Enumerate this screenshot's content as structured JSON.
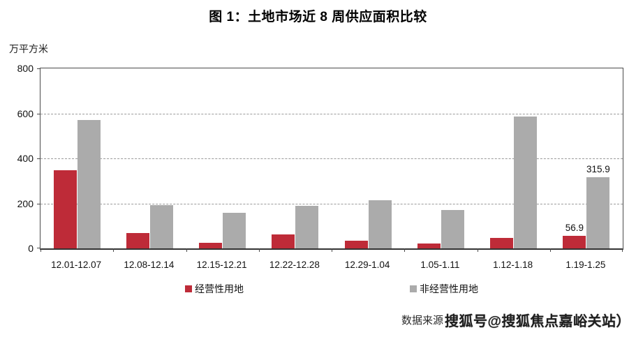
{
  "chart_data": {
    "type": "bar",
    "title": "图 1：土地市场近 8 周供应面积比较",
    "unit_label": "万平方米",
    "categories": [
      "12.01-12.07",
      "12.08-12.14",
      "12.15-12.21",
      "12.22-12.28",
      "12.29-1.04",
      "1.05-1.11",
      "1.12-1.18",
      "1.19-1.25"
    ],
    "series": [
      {
        "name": "经营性用地",
        "color": "#BE2B38",
        "values": [
          348,
          68,
          25,
          62,
          35,
          22,
          48,
          56.9
        ],
        "value_labels": [
          null,
          null,
          null,
          null,
          null,
          null,
          null,
          "56.9"
        ]
      },
      {
        "name": "非经营性用地",
        "color": "#ABABAB",
        "values": [
          570,
          193,
          158,
          190,
          215,
          172,
          585,
          315.9
        ],
        "value_labels": [
          null,
          null,
          null,
          null,
          null,
          null,
          null,
          "315.9"
        ]
      }
    ],
    "xlabel": "",
    "ylabel": "万平方米",
    "ylim": [
      0,
      800
    ],
    "yticks": [
      0,
      200,
      400,
      600,
      800
    ],
    "grid": "horizontal-dashed",
    "legend_position": "bottom"
  },
  "footer": {
    "source_label": "数据来源",
    "watermark": "搜狐号@搜狐焦点嘉峪关站）"
  }
}
